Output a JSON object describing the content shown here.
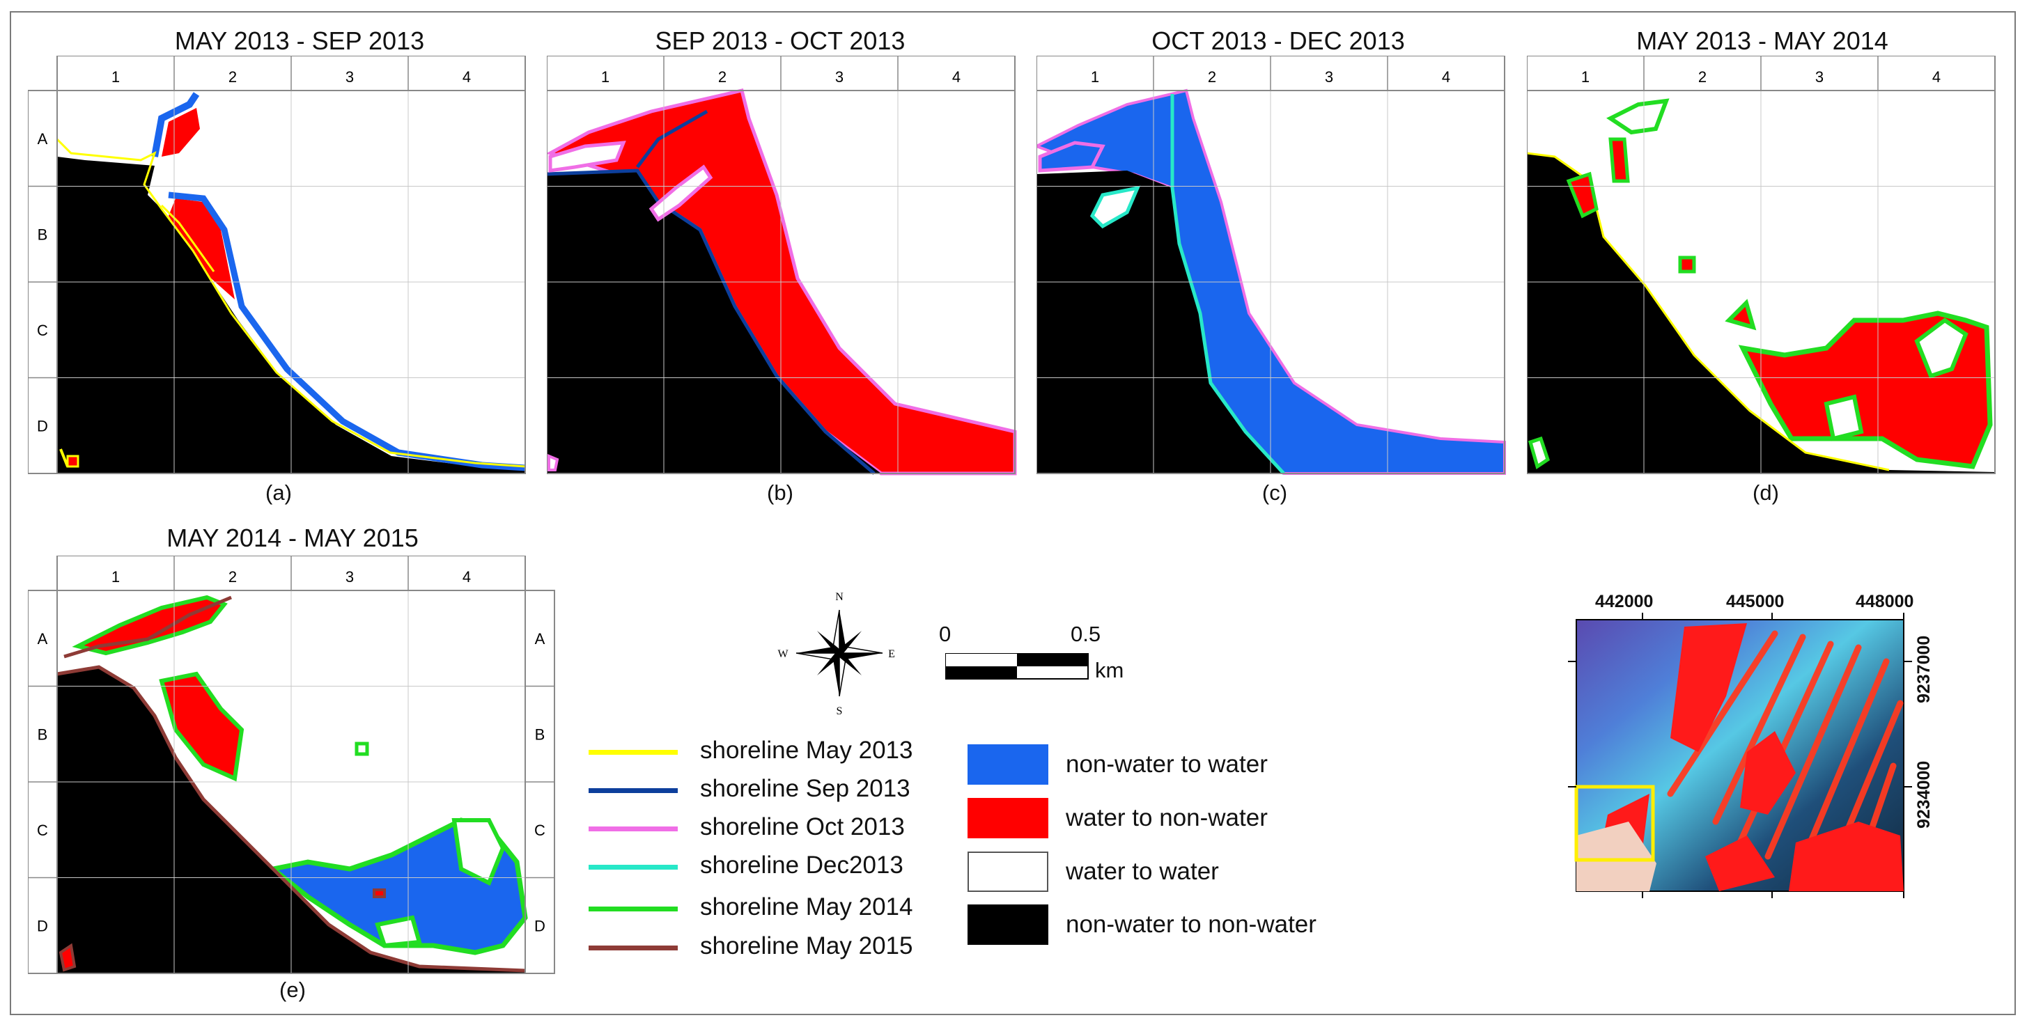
{
  "colors": {
    "non_water_to_water": "#1a66ee",
    "water_to_non_water": "#ff0000",
    "water_to_water": "#ffffff",
    "non_water_to_non_water": "#000000",
    "shoreline_may2013": "#ffff00",
    "shoreline_sep2013": "#0d3f9c",
    "shoreline_oct2013": "#f06ee6",
    "shoreline_dec2013": "#27e8c8",
    "shoreline_may2014": "#22dd22",
    "shoreline_may2015": "#8e3b36"
  },
  "grid": {
    "columns": [
      "1",
      "2",
      "3",
      "4"
    ],
    "rows": [
      "A",
      "B",
      "C",
      "D"
    ]
  },
  "panels": [
    {
      "title": "MAY 2013 - SEP 2013",
      "label": "(a)"
    },
    {
      "title": "SEP 2013 -  OCT 2013",
      "label": "(b)"
    },
    {
      "title": "OCT 2013 - DEC 2013",
      "label": "(c)"
    },
    {
      "title": "MAY 2013 - MAY 2014",
      "label": "(d)"
    },
    {
      "title": "MAY 2014 - MAY 2015",
      "label": "(e)"
    }
  ],
  "compass": {
    "n": "N",
    "s": "S",
    "e": "E",
    "w": "W"
  },
  "scale_bar": {
    "zero": "0",
    "max": "0.5",
    "unit": "km"
  },
  "legend": {
    "lines": [
      {
        "label": "shoreline May 2013",
        "color": "#ffff00"
      },
      {
        "label": "shoreline Sep 2013",
        "color": "#0d3f9c"
      },
      {
        "label": "shoreline Oct 2013",
        "color": "#f06ee6"
      },
      {
        "label": "shoreline Dec2013",
        "color": "#27e8c8"
      },
      {
        "label": "shoreline May 2014",
        "color": "#22dd22"
      },
      {
        "label": "shoreline May 2015",
        "color": "#8e3b36"
      }
    ],
    "classes": [
      {
        "label": "non-water to water",
        "color": "#1a66ee"
      },
      {
        "label": "water  to non-water",
        "color": "#ff0000"
      },
      {
        "label": "water  to water",
        "color": "#ffffff"
      },
      {
        "label": "non-water to non-water",
        "color": "#000000"
      }
    ]
  },
  "inset": {
    "x_ticks": [
      "442000",
      "445000",
      "448000"
    ],
    "y_ticks": [
      "9237000",
      "9234000"
    ]
  }
}
